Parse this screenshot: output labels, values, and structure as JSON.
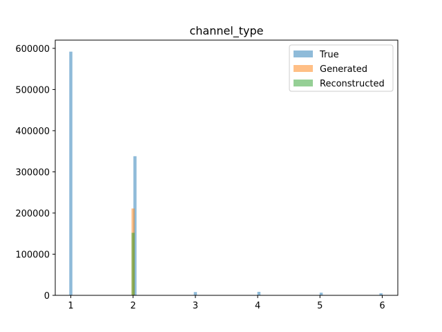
{
  "chart_data": {
    "type": "bar",
    "title": "channel_type",
    "xlabel": "",
    "ylabel": "",
    "xlim": [
      0.75,
      6.25
    ],
    "ylim": [
      0,
      620000
    ],
    "xticks": [
      1,
      2,
      3,
      4,
      5,
      6
    ],
    "yticks": [
      0,
      100000,
      200000,
      300000,
      400000,
      500000,
      600000
    ],
    "bar_width": 0.05,
    "legend_position": "top-right",
    "grid": false,
    "series": [
      {
        "name": "True",
        "color": "#1f77b4",
        "points": [
          {
            "x": 1.0,
            "y": 592000
          },
          {
            "x": 2.03,
            "y": 338000
          },
          {
            "x": 3.0,
            "y": 8000
          },
          {
            "x": 4.02,
            "y": 8500
          },
          {
            "x": 5.02,
            "y": 6500
          },
          {
            "x": 5.98,
            "y": 5000
          }
        ]
      },
      {
        "name": "Generated",
        "color": "#ff7f0e",
        "points": [
          {
            "x": 2.0,
            "y": 211000
          }
        ]
      },
      {
        "name": "Reconstructed",
        "color": "#2ca02c",
        "points": [
          {
            "x": 2.0,
            "y": 152000
          }
        ]
      }
    ]
  }
}
